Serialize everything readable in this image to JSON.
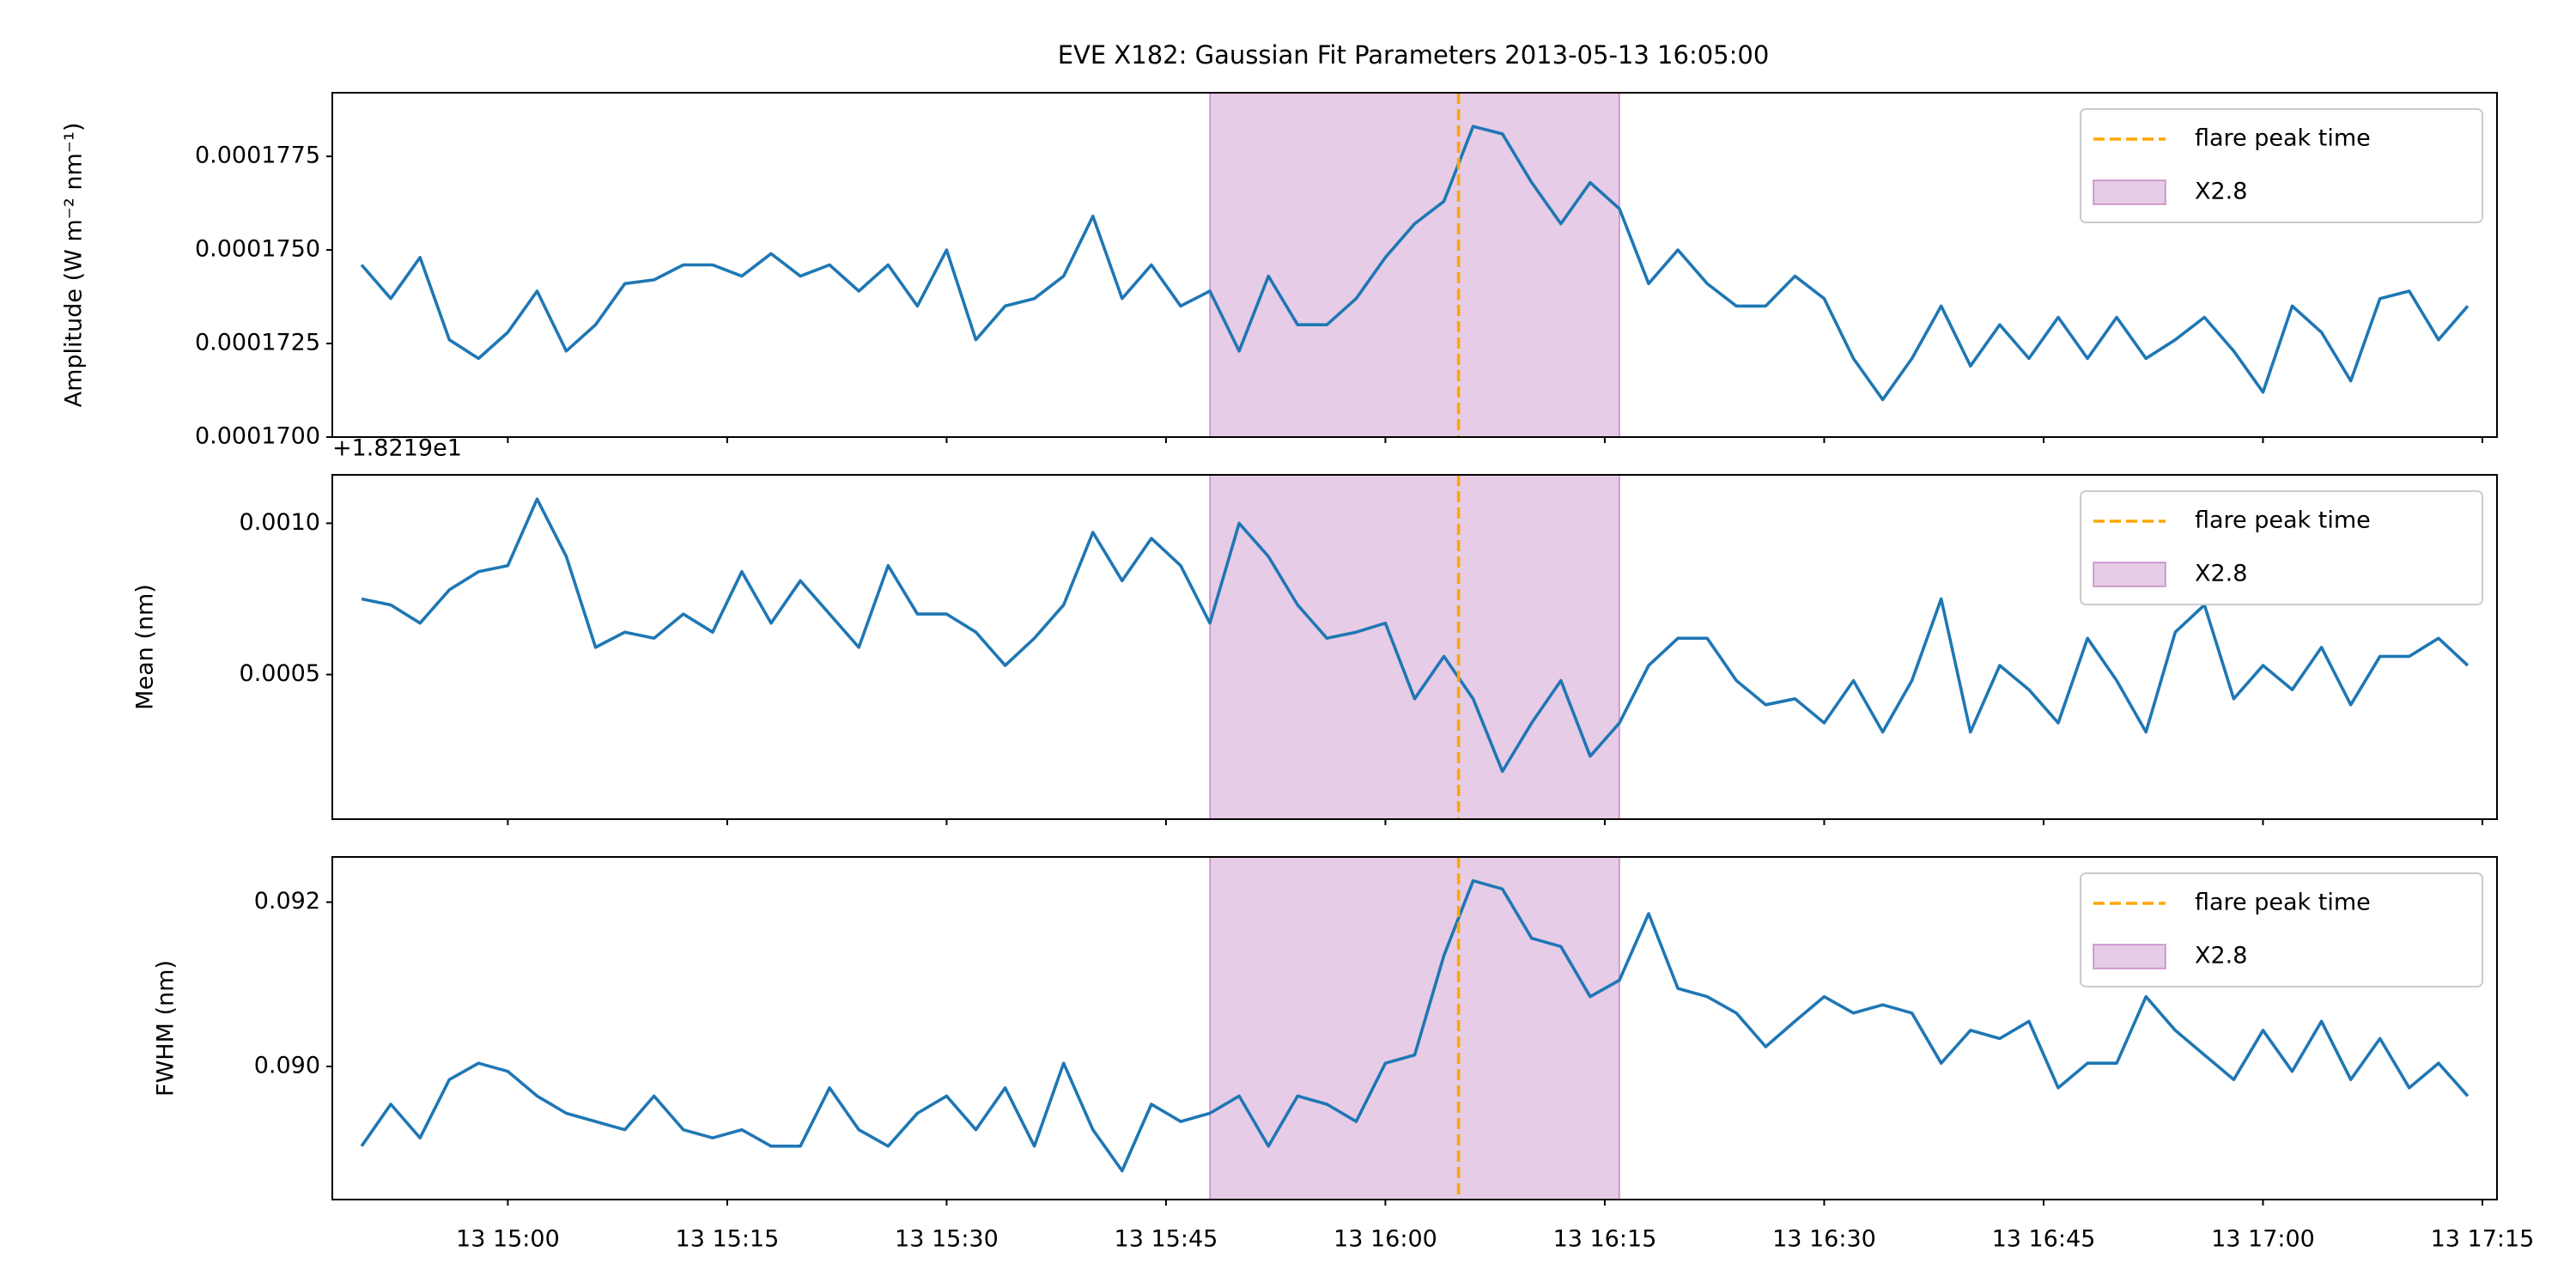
{
  "chart_data": [
    {
      "type": "line",
      "title": "EVE X182: Gaussian Fit Parameters        2013-05-13 16:05:00",
      "ylabel": "Amplitude (W m⁻² nm⁻¹)",
      "x": [
        "13 14:50",
        "13 14:52",
        "13 14:54",
        "13 14:56",
        "13 14:58",
        "13 15:00",
        "13 15:02",
        "13 15:04",
        "13 15:06",
        "13 15:08",
        "13 15:10",
        "13 15:12",
        "13 15:14",
        "13 15:16",
        "13 15:18",
        "13 15:20",
        "13 15:22",
        "13 15:24",
        "13 15:26",
        "13 15:28",
        "13 15:30",
        "13 15:32",
        "13 15:34",
        "13 15:36",
        "13 15:38",
        "13 15:40",
        "13 15:42",
        "13 15:44",
        "13 15:46",
        "13 15:48",
        "13 15:50",
        "13 15:52",
        "13 15:54",
        "13 15:56",
        "13 15:58",
        "13 16:00",
        "13 16:02",
        "13 16:04",
        "13 16:06",
        "13 16:08",
        "13 16:10",
        "13 16:12",
        "13 16:14",
        "13 16:16",
        "13 16:18",
        "13 16:20",
        "13 16:22",
        "13 16:24",
        "13 16:26",
        "13 16:28",
        "13 16:30",
        "13 16:32",
        "13 16:34",
        "13 16:36",
        "13 16:38",
        "13 16:40",
        "13 16:42",
        "13 16:44",
        "13 16:46",
        "13 16:48",
        "13 16:50",
        "13 16:52",
        "13 16:54",
        "13 16:56",
        "13 16:58",
        "13 17:00",
        "13 17:02",
        "13 17:04",
        "13 17:06",
        "13 17:08",
        "13 17:10",
        "13 17:12",
        "13 17:14"
      ],
      "values": [
        0.0001746,
        0.0001737,
        0.0001748,
        0.0001726,
        0.0001721,
        0.0001728,
        0.0001739,
        0.0001723,
        0.000173,
        0.0001741,
        0.0001742,
        0.0001746,
        0.0001746,
        0.0001743,
        0.0001749,
        0.0001743,
        0.0001746,
        0.0001739,
        0.0001746,
        0.0001735,
        0.000175,
        0.0001726,
        0.0001735,
        0.0001737,
        0.0001743,
        0.0001759,
        0.0001737,
        0.0001746,
        0.0001735,
        0.0001739,
        0.0001723,
        0.0001743,
        0.000173,
        0.000173,
        0.0001737,
        0.0001748,
        0.0001757,
        0.0001763,
        0.0001783,
        0.0001781,
        0.0001768,
        0.0001757,
        0.0001768,
        0.0001761,
        0.0001741,
        0.000175,
        0.0001741,
        0.0001735,
        0.0001735,
        0.0001743,
        0.0001737,
        0.0001721,
        0.000171,
        0.0001721,
        0.0001735,
        0.0001719,
        0.000173,
        0.0001721,
        0.0001732,
        0.0001721,
        0.0001732,
        0.0001721,
        0.0001726,
        0.0001732,
        0.0001723,
        0.0001712,
        0.0001735,
        0.0001728,
        0.0001715,
        0.0001737,
        0.0001739,
        0.0001726,
        0.0001735
      ],
      "color": "#1f77b4",
      "xlim": [
        "13 14:48",
        "13 17:16"
      ],
      "ylim": [
        0.00017,
        0.0001792
      ],
      "yticks": [
        {
          "value": 0.00017,
          "label": "0.0001700"
        },
        {
          "value": 0.0001725,
          "label": "0.0001725"
        },
        {
          "value": 0.000175,
          "label": "0.0001750"
        },
        {
          "value": 0.0001775,
          "label": "0.0001775"
        }
      ],
      "vline": {
        "x": "13 16:05",
        "label": "flare peak time",
        "color": "#ffa500"
      },
      "span": {
        "x": [
          "13 15:48",
          "13 16:16"
        ],
        "label": "X2.8",
        "color": "#800080"
      },
      "legend": "upper right"
    },
    {
      "type": "line",
      "ylabel": "Mean (nm)",
      "offset_text": "+1.8219e1",
      "x": [
        "13 14:50",
        "13 14:52",
        "13 14:54",
        "13 14:56",
        "13 14:58",
        "13 15:00",
        "13 15:02",
        "13 15:04",
        "13 15:06",
        "13 15:08",
        "13 15:10",
        "13 15:12",
        "13 15:14",
        "13 15:16",
        "13 15:18",
        "13 15:20",
        "13 15:22",
        "13 15:24",
        "13 15:26",
        "13 15:28",
        "13 15:30",
        "13 15:32",
        "13 15:34",
        "13 15:36",
        "13 15:38",
        "13 15:40",
        "13 15:42",
        "13 15:44",
        "13 15:46",
        "13 15:48",
        "13 15:50",
        "13 15:52",
        "13 15:54",
        "13 15:56",
        "13 15:58",
        "13 16:00",
        "13 16:02",
        "13 16:04",
        "13 16:06",
        "13 16:08",
        "13 16:10",
        "13 16:12",
        "13 16:14",
        "13 16:16",
        "13 16:18",
        "13 16:20",
        "13 16:22",
        "13 16:24",
        "13 16:26",
        "13 16:28",
        "13 16:30",
        "13 16:32",
        "13 16:34",
        "13 16:36",
        "13 16:38",
        "13 16:40",
        "13 16:42",
        "13 16:44",
        "13 16:46",
        "13 16:48",
        "13 16:50",
        "13 16:52",
        "13 16:54",
        "13 16:56",
        "13 16:58",
        "13 17:00",
        "13 17:02",
        "13 17:04",
        "13 17:06",
        "13 17:08",
        "13 17:10",
        "13 17:12",
        "13 17:14"
      ],
      "values": [
        0.00075,
        0.00073,
        0.00067,
        0.00078,
        0.00084,
        0.00086,
        0.00108,
        0.00089,
        0.00059,
        0.00064,
        0.00062,
        0.0007,
        0.00064,
        0.00084,
        0.00067,
        0.00081,
        0.0007,
        0.00059,
        0.00086,
        0.0007,
        0.0007,
        0.00064,
        0.00053,
        0.00062,
        0.00073,
        0.00097,
        0.00081,
        0.00095,
        0.00086,
        0.00067,
        0.001,
        0.00089,
        0.00073,
        0.00062,
        0.00064,
        0.00067,
        0.00042,
        0.00056,
        0.00042,
        0.00018,
        0.00034,
        0.00048,
        0.00023,
        0.00034,
        0.00053,
        0.00062,
        0.00062,
        0.00048,
        0.0004,
        0.00042,
        0.00034,
        0.00048,
        0.00031,
        0.00048,
        0.00075,
        0.00031,
        0.00053,
        0.00045,
        0.00034,
        0.00062,
        0.00048,
        0.00031,
        0.00064,
        0.00073,
        0.00042,
        0.00053,
        0.00045,
        0.00059,
        0.0004,
        0.00056,
        0.00056,
        0.00062,
        0.00053
      ],
      "color": "#1f77b4",
      "xlim": [
        "13 14:48",
        "13 17:16"
      ],
      "ylim": [
        2.2e-05,
        0.00116
      ],
      "yticks": [
        0.0005,
        {
          "value": 0.001,
          "label": "0.0010"
        }
      ],
      "vline": {
        "x": "13 16:05",
        "label": "flare peak time",
        "color": "#ffa500"
      },
      "span": {
        "x": [
          "13 15:48",
          "13 16:16"
        ],
        "label": "X2.8",
        "color": "#800080"
      },
      "legend": "upper right"
    },
    {
      "type": "line",
      "ylabel": "FWHM (nm)",
      "x": [
        "13 14:50",
        "13 14:52",
        "13 14:54",
        "13 14:56",
        "13 14:58",
        "13 15:00",
        "13 15:02",
        "13 15:04",
        "13 15:06",
        "13 15:08",
        "13 15:10",
        "13 15:12",
        "13 15:14",
        "13 15:16",
        "13 15:18",
        "13 15:20",
        "13 15:22",
        "13 15:24",
        "13 15:26",
        "13 15:28",
        "13 15:30",
        "13 15:32",
        "13 15:34",
        "13 15:36",
        "13 15:38",
        "13 15:40",
        "13 15:42",
        "13 15:44",
        "13 15:46",
        "13 15:48",
        "13 15:50",
        "13 15:52",
        "13 15:54",
        "13 15:56",
        "13 15:58",
        "13 16:00",
        "13 16:02",
        "13 16:04",
        "13 16:06",
        "13 16:08",
        "13 16:10",
        "13 16:12",
        "13 16:14",
        "13 16:16",
        "13 16:18",
        "13 16:20",
        "13 16:22",
        "13 16:24",
        "13 16:26",
        "13 16:28",
        "13 16:30",
        "13 16:32",
        "13 16:34",
        "13 16:36",
        "13 16:38",
        "13 16:40",
        "13 16:42",
        "13 16:44",
        "13 16:46",
        "13 16:48",
        "13 16:50",
        "13 16:52",
        "13 16:54",
        "13 16:56",
        "13 16:58",
        "13 17:00",
        "13 17:02",
        "13 17:04",
        "13 17:06",
        "13 17:08",
        "13 17:10",
        "13 17:12",
        "13 17:14"
      ],
      "values": [
        0.08903,
        0.08954,
        0.08913,
        0.08984,
        0.09004,
        0.08994,
        0.08964,
        0.08943,
        0.08933,
        0.08923,
        0.08964,
        0.08923,
        0.08913,
        0.08923,
        0.08903,
        0.08903,
        0.08974,
        0.08923,
        0.08903,
        0.08943,
        0.08964,
        0.08923,
        0.08974,
        0.08903,
        0.09004,
        0.08923,
        0.08873,
        0.08954,
        0.08933,
        0.08943,
        0.08964,
        0.08903,
        0.08964,
        0.08954,
        0.08933,
        0.09004,
        0.09014,
        0.09135,
        0.09226,
        0.09216,
        0.09156,
        0.09146,
        0.09085,
        0.09105,
        0.09186,
        0.09095,
        0.09085,
        0.09065,
        0.09024,
        0.09055,
        0.09085,
        0.09065,
        0.09075,
        0.09065,
        0.09004,
        0.09044,
        0.09034,
        0.09055,
        0.08974,
        0.09004,
        0.09004,
        0.09085,
        0.09044,
        0.09014,
        0.08984,
        0.09044,
        0.08994,
        0.09055,
        0.08984,
        0.09034,
        0.08974,
        0.09004,
        0.08964
      ],
      "color": "#1f77b4",
      "xlim": [
        "13 14:48",
        "13 17:16"
      ],
      "ylim": [
        0.08838,
        0.09255
      ],
      "yticks": [
        {
          "value": 0.09,
          "label": "0.090"
        },
        0.092
      ],
      "xticks": [
        "13 15:00",
        "13 15:15",
        "13 15:30",
        "13 15:45",
        "13 16:00",
        "13 16:15",
        "13 16:30",
        "13 16:45",
        "13 17:00",
        "13 17:15"
      ],
      "vline": {
        "x": "13 16:05",
        "label": "flare peak time",
        "color": "#ffa500"
      },
      "span": {
        "x": [
          "13 15:48",
          "13 16:16"
        ],
        "label": "X2.8",
        "color": "#800080"
      },
      "legend": "upper right"
    }
  ]
}
